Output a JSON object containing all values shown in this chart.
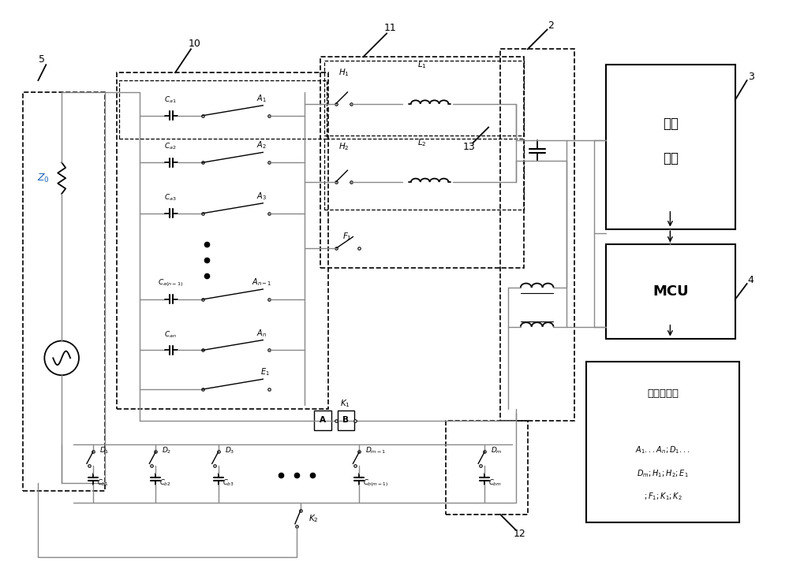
{
  "fig_width": 10.0,
  "fig_height": 7.45,
  "bg_color": "#ffffff",
  "lc": "#000000",
  "gc": "#888888",
  "blue": "#1a5fb5",
  "lw_main": 1.3,
  "lw_wire": 1.0,
  "lw_dash": 1.2,
  "label_10": "10",
  "label_11": "11",
  "label_5": "5",
  "label_2": "2",
  "label_3": "3",
  "label_4": "4",
  "label_12": "12",
  "label_13": "13"
}
